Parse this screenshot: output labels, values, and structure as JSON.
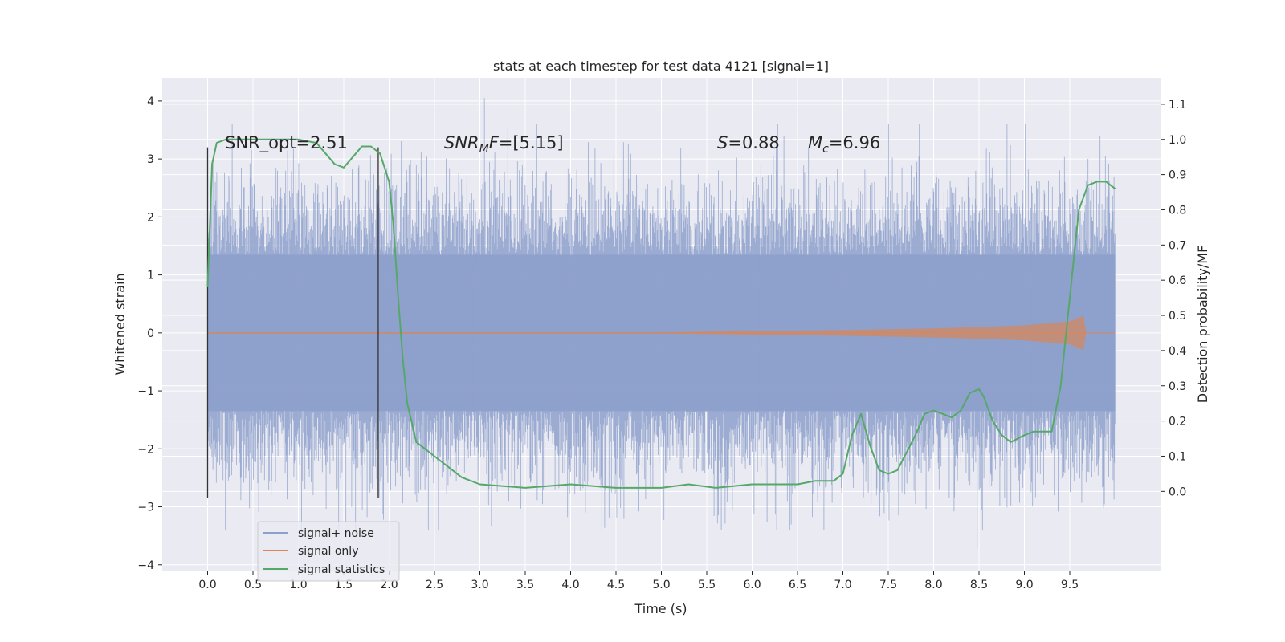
{
  "chart_data": {
    "type": "line",
    "title": "stats at each timestep for test data 4121 [signal=1]",
    "xlabel": "Time (s)",
    "ylabel": "Whitened strain",
    "y2label": "Detection probability/MF",
    "xlim": [
      -0.5,
      10.5
    ],
    "ylim": [
      -4.1,
      4.4
    ],
    "y2lim": [
      -0.225,
      1.175
    ],
    "x_ticks": [
      "0.0",
      "0.5",
      "1.0",
      "1.5",
      "2.0",
      "2.5",
      "3.0",
      "3.5",
      "4.0",
      "4.5",
      "5.0",
      "5.5",
      "6.0",
      "6.5",
      "7.0",
      "7.5",
      "8.0",
      "8.5",
      "9.0",
      "9.5"
    ],
    "y_ticks": [
      "4",
      "3",
      "2",
      "1",
      "0",
      "−1",
      "−2",
      "−3",
      "−4"
    ],
    "y2_ticks": [
      "1.1",
      "1.0",
      "0.9",
      "0.8",
      "0.7",
      "0.6",
      "0.5",
      "0.4",
      "0.3",
      "0.2",
      "0.1",
      "0.0"
    ],
    "grid": true,
    "legend_position": "lower-left",
    "annotations": {
      "snr_opt": "SNR_opt=2.51",
      "snr_mf_base": "SNR",
      "snr_mf_sub": "M",
      "snr_mf_tail": "F=[5.15]",
      "s_var": "S",
      "s_val": "=0.88",
      "mc_var": "M",
      "mc_sub": "c",
      "mc_val": "=6.96"
    },
    "vertical_markers": [
      0.0,
      1.88
    ],
    "series": [
      {
        "name": "signal+ noise",
        "color": "#8da0cb",
        "x_range": [
          0.0,
          10.0
        ],
        "band_core": [
          -1.35,
          1.35
        ],
        "peak_extremes": {
          "max": 4.05,
          "max_at": 3.05,
          "min": -3.72,
          "min_at": 8.48
        }
      },
      {
        "name": "signal only",
        "color": "#dd8452",
        "x": [
          0.0,
          5.0,
          6.0,
          7.0,
          8.0,
          8.5,
          9.0,
          9.3,
          9.5,
          9.65,
          9.68
        ],
        "envelope": [
          0.01,
          0.01,
          0.03,
          0.05,
          0.08,
          0.1,
          0.13,
          0.17,
          0.2,
          0.3,
          0.02
        ]
      },
      {
        "name": "signal statistics",
        "color": "#55a868",
        "axis": "right",
        "x": [
          0.0,
          0.05,
          0.1,
          0.2,
          0.3,
          0.5,
          0.8,
          1.0,
          1.2,
          1.3,
          1.4,
          1.5,
          1.6,
          1.7,
          1.8,
          1.9,
          2.0,
          2.05,
          2.1,
          2.15,
          2.2,
          2.3,
          2.5,
          2.8,
          3.0,
          3.5,
          4.0,
          4.5,
          5.0,
          5.3,
          5.6,
          6.0,
          6.5,
          6.7,
          6.9,
          7.0,
          7.1,
          7.2,
          7.3,
          7.4,
          7.5,
          7.6,
          7.8,
          7.9,
          8.0,
          8.1,
          8.2,
          8.3,
          8.4,
          8.5,
          8.55,
          8.65,
          8.75,
          8.85,
          9.0,
          9.1,
          9.2,
          9.3,
          9.4,
          9.5,
          9.6,
          9.7,
          9.8,
          9.9,
          10.0
        ],
        "y": [
          0.58,
          0.93,
          0.99,
          1.0,
          1.0,
          1.0,
          1.0,
          1.0,
          0.99,
          0.96,
          0.93,
          0.92,
          0.95,
          0.98,
          0.98,
          0.96,
          0.88,
          0.75,
          0.55,
          0.38,
          0.25,
          0.14,
          0.1,
          0.04,
          0.02,
          0.01,
          0.02,
          0.01,
          0.01,
          0.02,
          0.01,
          0.02,
          0.02,
          0.03,
          0.03,
          0.05,
          0.16,
          0.22,
          0.13,
          0.06,
          0.05,
          0.06,
          0.16,
          0.22,
          0.23,
          0.22,
          0.21,
          0.23,
          0.28,
          0.29,
          0.27,
          0.2,
          0.16,
          0.14,
          0.16,
          0.17,
          0.17,
          0.17,
          0.3,
          0.55,
          0.8,
          0.87,
          0.88,
          0.88,
          0.86
        ]
      }
    ]
  }
}
